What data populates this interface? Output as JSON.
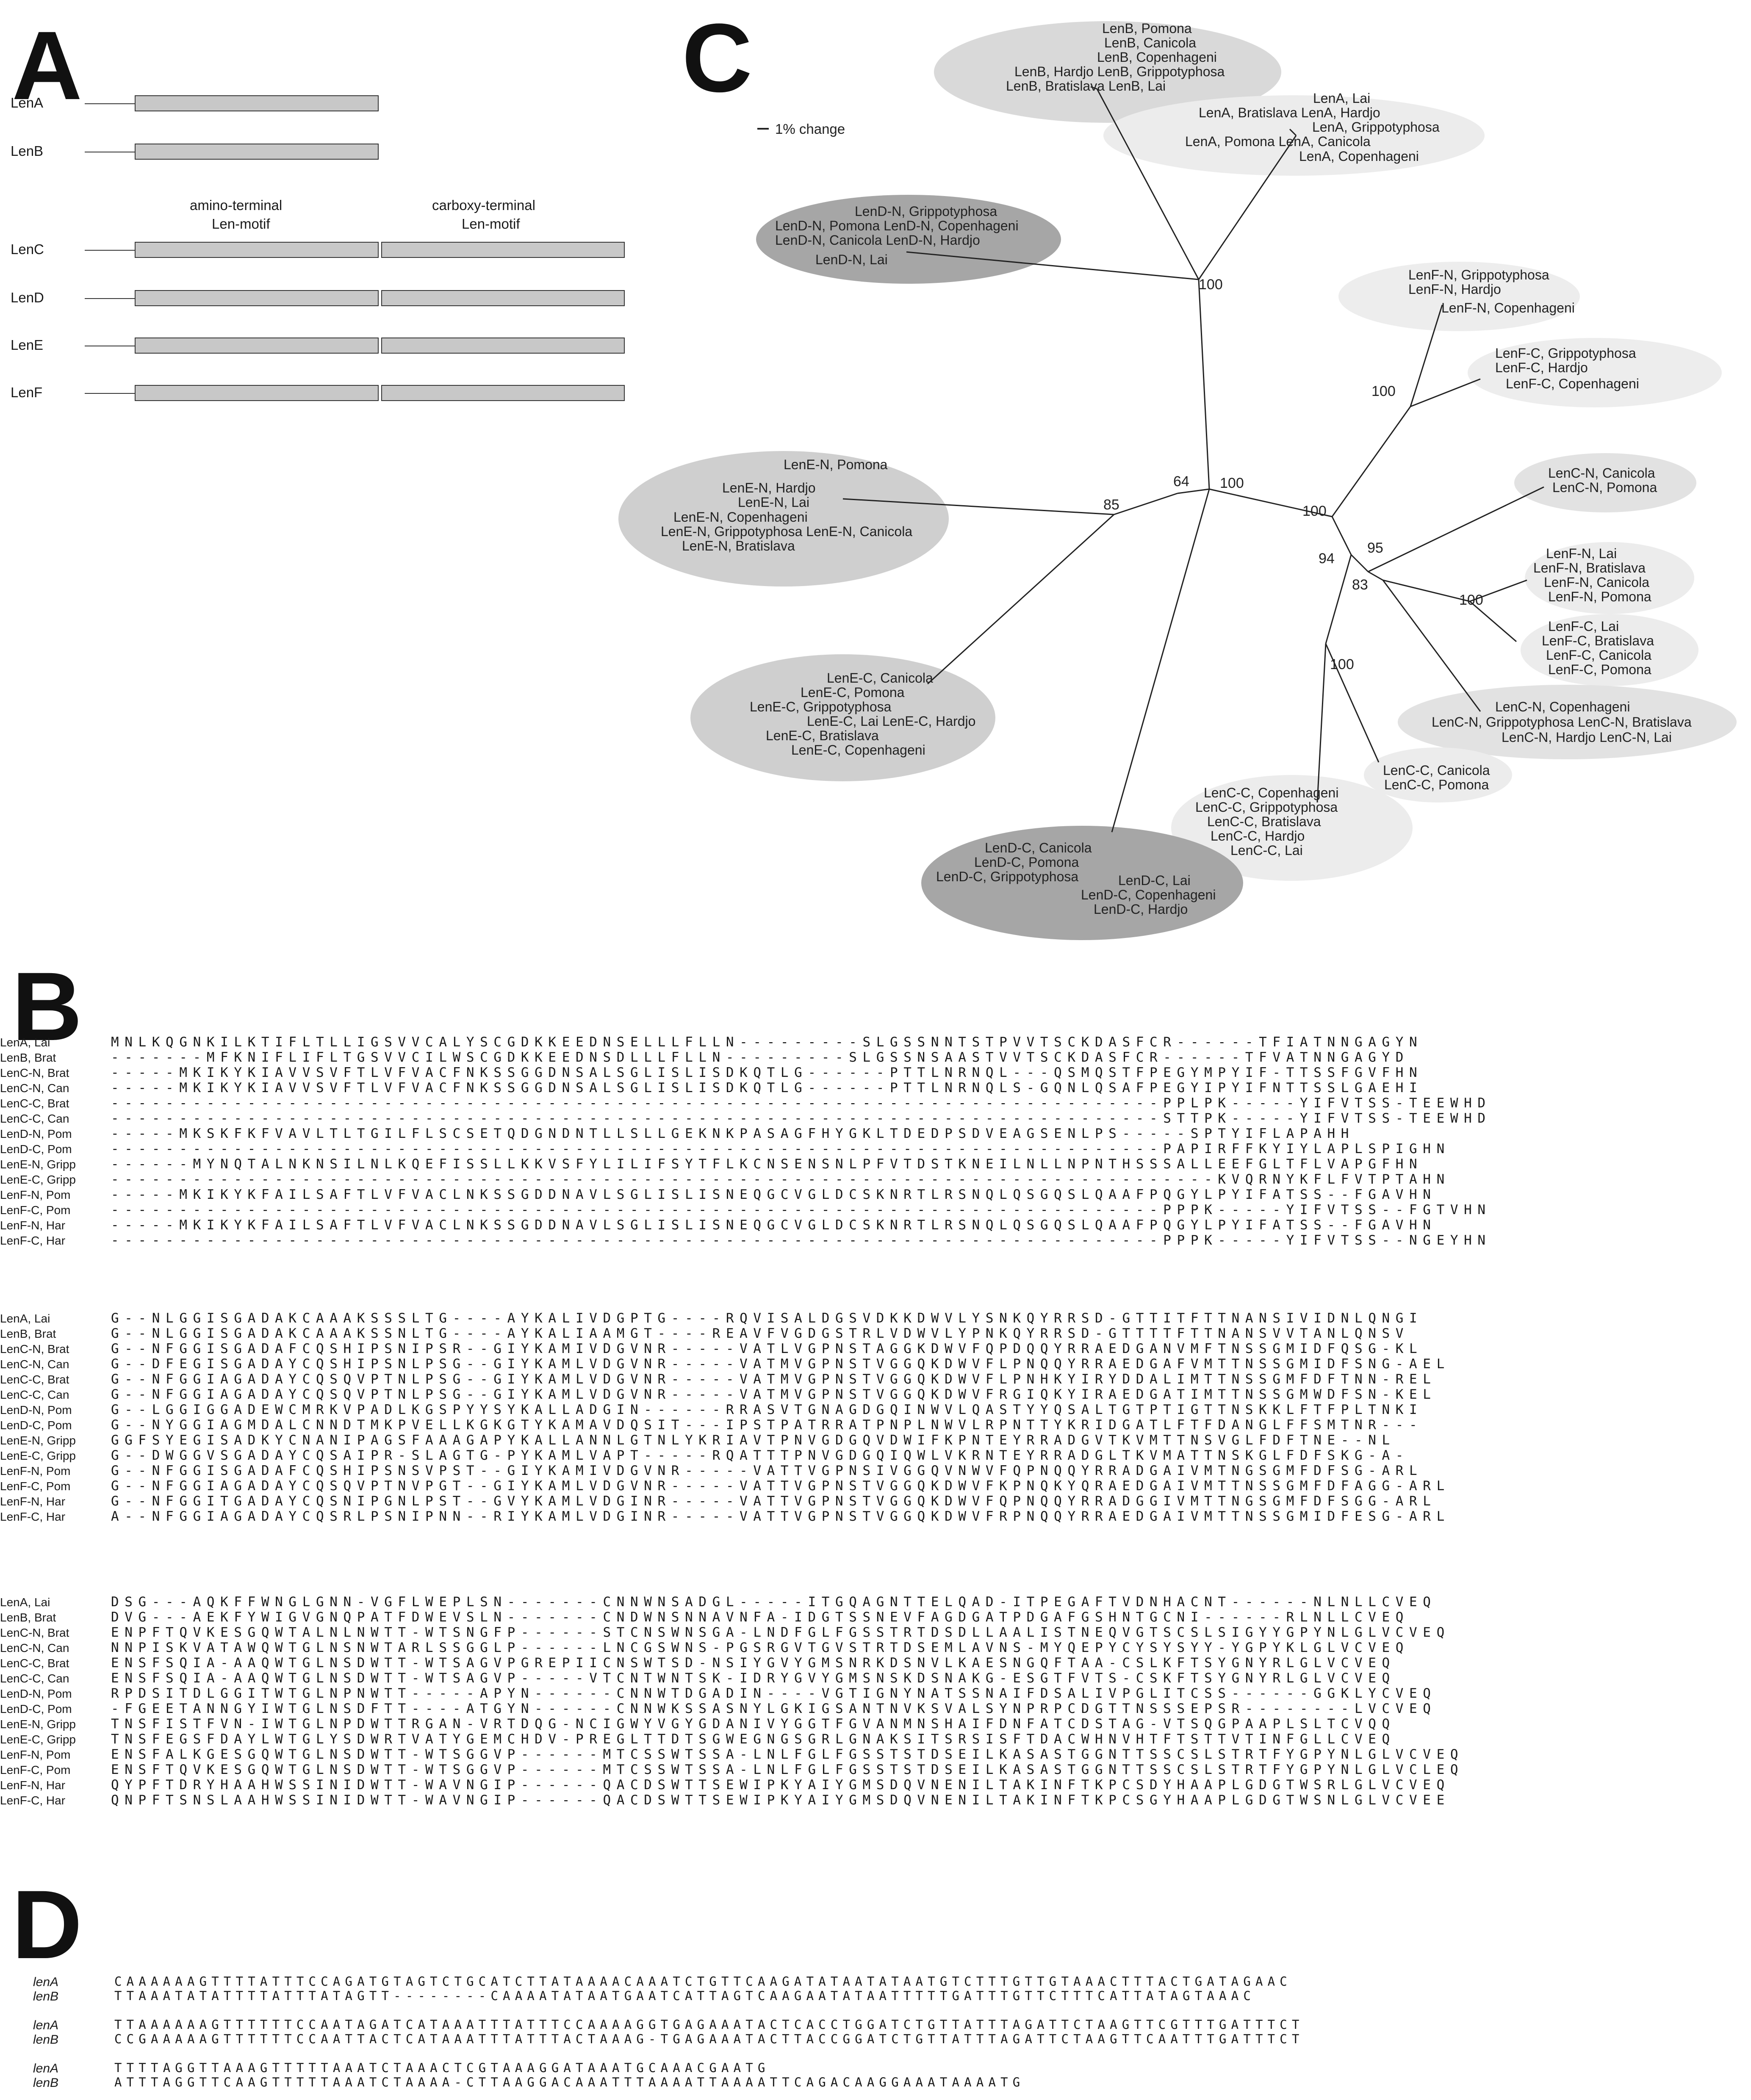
{
  "panel_a": {
    "letter": "A",
    "rows": [
      "LenA",
      "LenB",
      "LenC",
      "LenD",
      "LenE",
      "LenF"
    ],
    "motif_n": [
      "amino-terminal",
      "Len-motif"
    ],
    "motif_c": [
      "carboxy-terminal",
      "Len-motif"
    ]
  },
  "panel_c": {
    "letter": "C",
    "scale_label": "1% change",
    "bootstrap": [
      "100",
      "100",
      "64",
      "100",
      "85",
      "100",
      "95",
      "94",
      "83",
      "100",
      "100"
    ],
    "clusters": [
      {
        "lines": [
          "LenB, Pomona",
          "LenB, Canicola",
          "LenB, Copenhageni",
          "LenB, Hardjo  LenB, Grippotyphosa",
          "LenB, Bratislava     LenB, Lai"
        ],
        "fill": "#d9d9d9"
      },
      {
        "lines": [
          "LenA, Lai",
          "LenA, Bratislava   LenA, Hardjo",
          "LenA, Grippotyphosa",
          "LenA, Pomona        LenA, Canicola",
          "LenA, Copenhageni"
        ],
        "fill": "#ececec"
      },
      {
        "lines": [
          "LenD-N, Grippotyphosa",
          "LenD-N, Pomona   LenD-N, Copenhageni",
          "LenD-N, Canicola    LenD-N, Hardjo",
          "LenD-N, Lai"
        ],
        "fill": "#a6a6a6"
      },
      {
        "lines": [
          "LenF-N, Grippotyphosa",
          "LenF-N, Hardjo",
          "LenF-N, Copenhageni"
        ],
        "fill": "#ededed"
      },
      {
        "lines": [
          "LenF-C, Grippotyphosa",
          "LenF-C, Hardjo",
          "LenF-C, Copenhageni"
        ],
        "fill": "#ededed"
      },
      {
        "lines": [
          "LenE-N, Pomona",
          "LenE-N, Hardjo",
          "LenE-N, Lai",
          "LenE-N, Copenhageni",
          "LenE-N, Grippotyphosa  LenE-N, Canicola",
          "LenE-N, Bratislava"
        ],
        "fill": "#cfcfcf"
      },
      {
        "lines": [
          "LenC-N, Canicola",
          "LenC-N, Pomona"
        ],
        "fill": "#e2e2e2"
      },
      {
        "lines": [
          "LenF-N, Lai",
          "LenF-N, Bratislava",
          "LenF-N, Canicola",
          "LenF-N, Pomona"
        ],
        "fill": "#ececec"
      },
      {
        "lines": [
          "LenF-C, Lai",
          "LenF-C, Bratislava",
          "LenF-C, Canicola",
          "LenF-C, Pomona"
        ],
        "fill": "#ececec"
      },
      {
        "lines": [
          "LenC-N, Copenhageni",
          "LenC-N, Grippotyphosa   LenC-N, Bratislava",
          "LenC-N, Hardjo   LenC-N, Lai"
        ],
        "fill": "#e2e2e2"
      },
      {
        "lines": [
          "LenE-C, Canicola",
          "LenE-C, Pomona",
          "LenE-C, Grippotyphosa",
          "LenE-C, Lai        LenE-C, Hardjo",
          "LenE-C, Bratislava",
          "LenE-C, Copenhageni"
        ],
        "fill": "#cfcfcf"
      },
      {
        "lines": [
          "LenC-C, Copenhageni",
          "LenC-C, Grippotyphosa",
          "LenC-C, Bratislava",
          "LenC-C, Hardjo",
          "LenC-C, Lai"
        ],
        "fill": "#ececec"
      },
      {
        "lines": [
          "LenC-C, Canicola",
          "LenC-C, Pomona"
        ],
        "fill": "#ececec"
      },
      {
        "lines": [
          "LenD-C, Canicola",
          "LenD-C, Pomona",
          "LenD-C, Grippotyphosa",
          "LenD-C, Lai",
          "LenD-C, Copenhageni",
          "LenD-C, Hardjo"
        ],
        "fill": "#a6a6a6"
      }
    ]
  },
  "panel_b": {
    "letter": "B",
    "names": [
      "LenA, Lai",
      "LenB, Brat",
      "LenC-N, Brat",
      "LenC-N, Can",
      "LenC-C, Brat",
      "LenC-C, Can",
      "LenD-N, Pom",
      "LenD-C, Pom",
      "LenE-N, Gripp",
      "LenE-C, Gripp",
      "LenF-N, Pom",
      "LenF-C, Pom",
      "LenF-N, Har",
      "LenF-C, Har"
    ],
    "blocks": [
      [
        "MNLKQGNKILKTIFLTLLIGSVVCALYSCGDKKEEDNSELLLFLLN---------SLGSSNNTSTPVVTSCKDASFCR------TFIATNNGAGYN",
        "-------MFKNIFLIFLTGSVVCILWSCGDKKEEDNSDLLLFLLN---------SLGSSNSAASTVVTSCKDASFCR------TFVATNNGAGYD",
        "-----MKIKYKIAVVSVFTLVFVACFNKSSGGDNSALSGLISLISDKQTLG------PTTLNRNQL---QSMQSTFPEGYMPYIF-TTSSFGVFHN",
        "-----MKIKYKIAVVSVFTLVFVACFNKSSGGDNSALSGLISLISDKQTLG------PTTLNRNQLS-GQNLQSAFPEGYIPYIFNTTSSLGAEHI",
        "-----------------------------------------------------------------------------PPLPK-----YIFVTSS-TEEWHD",
        "-----------------------------------------------------------------------------STTPK-----YIFVTSS-TEEWHD",
        "-----MKSKFKFVAVLTLTGILFLSCSETQDGNDNTLLSLLGEKNKPASAGFHYGKLTDEDPSDVEAGSENLPS-----SPTYIFLAPAHH",
        "-----------------------------------------------------------------------------PAPIRFFKYIYLAPLSPIGHN",
        "------MYNQTALNKNSILNLKQEFISSLLKKVSFYLILIFSYTFLKCNSENSNLPFVTDSTKNEILNLLNPNTHSSSALLEEFGLTFLVAPGFHN",
        "---------------------------------------------------------------------------------KVQRNYKFLFVTPTAHN",
        "-----MKIKYKFAILSAFTLVFVACLNKSSGDDNAVLSGLISLISNEQGCVGLDCSKNRTLRSNQLQSGQSLQAAFPQGYLPYIFATSS--FGAVHN",
        "-----------------------------------------------------------------------------PPPK-----YIFVTSS--FGTVHN",
        "-----MKIKYKFAILSAFTLVFVACLNKSSGDDNAVLSGLISLISNEQGCVGLDCSKNRTLRSNQLQSGQSLQAAFPQGYLPYIFATSS--FGAVHN",
        "-----------------------------------------------------------------------------PPPK-----YIFVTSS--NGEYHN"
      ],
      [
        "G--NLGGISGADAKCAAAKSSSLTG----AYKALIVDGPTG----RQVISALDGSVDKKDWVLYSNKQYRRSD-GTTITFTTNANSIVIDNLQNGI",
        "G--NLGGISGADAKCAAAKSSNLTG----AYKALIAAMGT----REAVFVGDGSTRLVDWVLYPNKQYRRSD-GTTTTFTTNANSVVTANLQNSV",
        "G--NFGGISGADAFCQSHIPSNIPSR--GIYKAMIVDGVNR-----VATLVGPNSTAGGKDWVFQPDQQYRRAEDGANVMFTNSSGMIDFQSG-KL",
        "G--DFEGISGADAYCQSHIPSNLPSG--GIYKAMLVDGVNR-----VATMVGPNSTVGGQKDWVFLPNQQYRRAEDGAFVMTTNSSGMIDFSNG-AEL",
        "G--NFGGIAGADAYCQSQVPTNLPSG--GIYKAMLVDGVNR-----VATMVGPNSTVGGQKDWVFLPNHKYIRYDDALIMTTNSSGMFDFTNN-REL",
        "G--NFGGIAGADAYCQSQVPTNLPSG--GIYKAMLVDGVNR-----VATMVGPNSTVGGQKDWVFRGIQKYIRAEDGATIMTTNSSGMWDFSN-KEL",
        "G--LGGIGGADEWCMRKVPADLKGSPYYSYKALLADGIN------RRASVTGNAGDGQINWVLQASTYYQSALTGTPTIGTTNSKKLFTFPLTNKI",
        "G--NYGGIAGMDALCNNDTMKPVELLKGKGTYKAMAVDQSIT---IPSTPATRRATPNPLNWVLRPNTTYKRIDGATLFTFDANGLFFSMTNR---",
        "GGFSYEGISADKYCNANIPAGSFAAAGAPYKALLANNLGTNLYKRIAVTPNVGDGQVDWIFKPNTEYRRADGVTKVMTTNSVGLFDFTNE--NL",
        "G--DWGGVSGADAYCQSAIPR-SLAGTG-PYKAMLVAPT-----RQATTTPNVGDGQIQWLVKRNTEYRRADGLTKVMATTNSKGLFDFSKG-A-",
        "G--NFGGISGADAFCQSHIPSNSVPST--GIYKAMIVDGVNR-----VATTVGPNSIVGGQVNWVFQPNQQYRRADGAIVMTNGSGMFDFSG-ARL",
        "G--NFGGIAGADAYCQSQVPTNVPGT--GIYKAMLVDGVNR-----VATTVGPNSTVGGQKDWVFKPNQKYQRAEDGAIVMTTNSSGMFDFAGG-ARL",
        "G--NFGGITGADAYCQSNIPGNLPST--GVYKAMLVDGINR-----VATTVGPNSTVGGQKDWVFQPNQQYRRADGGIVMTTNGSGMFDFSGG-ARL",
        "A--NFGGIAGADAYCQSRLPSNIPNN--RIYKAMLVDGINR-----VATTVGPNSTVGGQKDWVFRPNQQYRRAEDGAIVMTTNSSGMIDFESG-ARL"
      ],
      [
        "DSG---AQKFFWNGLGNN-VGFLWEPLSN-------CNNWNSADGL-----ITGQAGNTTELQAD-ITPEGAFTVDNHACNT------NLNLLCVEQ",
        "DVG---AEKFYWIGVGNQPATFDWEVSLN-------CNDWNSNNAVNFA-IDGTSSNEVFAGDGATPDGAFGSHNTGCNI------RLNLLCVEQ",
        "ENPFTQVKESGQWTALNLNWTT-WTSNGFP------STCNSWNSGA-LNDFGLFGSSTRTDSDLLAALISTNEQVGTSCSLSIGYYGPYNLGLVCVEQ",
        "NNPISKVATAWQWTGLNSNWTARLSSGGLP------LNCGSWNS-PGSRGVTGVSTRTDSEMLAVNS-MYQEPYCYSYSYY-YGPYKLGLVCVEQ",
        "ENSFSQIA-AAQWTGLNSDWTT-WTSAGVPGREPIICNSWTSD-NSIYGVYGMSNRKDSNVLKAESNGQFTAA-CSLKFTSYGNYRLGLVCVEQ",
        "ENSFSQIA-AAQWTGLNSDWTT-WTSAGVP-----VTCNTWNTSK-IDRYGVYGMSNSKDSNAKG-ESGTFVTS-CSKFTSYGNYRLGLVCVEQ",
        "RPDSITDLGGITWTGLNPNWTT-----APYN------CNNWTDGADIN----VGTIGNYNATSSNAIFDSALIVPGLITCSS------GGKLYCVEQ",
        "-FGEETANNGYIWTGLNSDFTT----ATGYN------CNNWKSSASNYLGKIGSANTNVKSVALSYNPRPCDGTTNSSSEPSR--------LVCVEQ",
        "TNSFISTFVN-IWTGLNPDWTTRGAN-VRTDQG-NCIGWYVGYGDANIVYGGTFGVANMNSHAIFDNFATCDSTAG-VTSQGPAAPLSLTCVQQ",
        "TNSFEGSFDAYLWTGLYSDWRTVATYGEMCHDV-PREGLTTDTSGWEGNGSGRLGNAKSITSRSISFTDACWHNVHTFTSTTVTINFGLLCVEQ",
        "ENSFALKGESGQWTGLNSDWTT-WTSGGVP------MTCSSWTSSA-LNLFGLFGSSTSTDSEILKASASTGGNTTSSCSLSTRTFYGPYNLGLVCVEQ",
        "ENSFTQVKESGQWTGLNSDWTT-WTSGGVP------MTCSSWTSSA-LNLFGLFGSSTSTDSEILKASASTGGNTTSSCSLSTRTFYGPYNLGLVCLEQ",
        "QYPFTDRYHAAHWSSINIDWTT-WAVNGIP------QACDSWTTSEWIPKYAIYGMSDQVNENILTAKINFTKPCSDYHAAPLGDGTWSRLGLVCVEQ",
        "QNPFTSNSLAAHWSSINIDWTT-WAVNGIP------QACDSWTTSEWIPKYAIYGMSDQVNENILTAKINFTKPCSGYHAAPLGDGTWSNLGLVCVEE"
      ]
    ]
  },
  "panel_d": {
    "letter": "D",
    "names": [
      "lenA",
      "lenB"
    ],
    "blocks": [
      [
        "CAAAAAAGTTTTATTTCCAGATGTAGTCTGCATCTTATAAAACAAATCTGTTCAAGATATAATATAATGTCTTTGTTGTAAACTTTACTGATAGAAC",
        "TTAAATATATTTTATTTATAGTT--------CAAAATATAATGAATCATTAGTCAAGAATATAATTTTTGATTTGTTCTTTCATTATAGTAAAC"
      ],
      [
        "TTAAAAAAGTTTTTTCCAATAGATCATAAATTTATTTCCAAAAGGTGAGAAATACTCACCTGGATCTGTTATTTAGATTCTAAGTTCGTTTGATTTCT",
        "CCGAAAAAGTTTTTTCCAATTACTCATAAATTTATTTACTAAAG-TGAGAAATACTTACCGGATCTGTTATTTAGATTCTAAGTTCAATTTGATTTCT"
      ],
      [
        "TTTTAGGTTAAAGTTTTTAAATCTAAACTCGTAAAGGATAAATGCAAACGAATG",
        "ATTTAGGTTCAAGTTTTTAAATCTAAAA-CTTAAGGACAAATTTAAAATTAAAATTCAGACAAGGAAATAAAATG"
      ]
    ]
  }
}
